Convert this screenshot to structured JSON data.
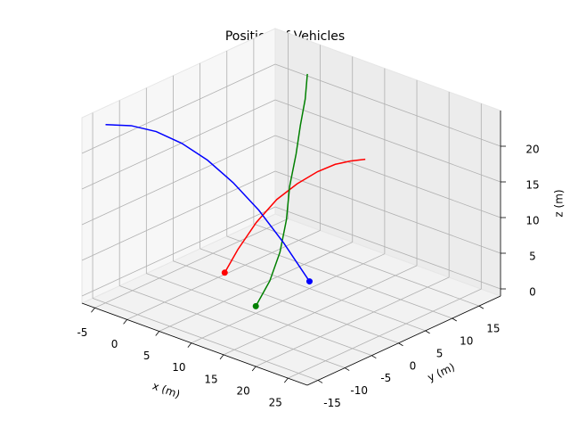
{
  "chart_data": {
    "type": "line3d",
    "title": "Position of Vehicles",
    "xlabel": "x (m)",
    "ylabel": "y (m)",
    "zlabel": "z (m)",
    "xlim": [
      -7,
      28
    ],
    "xticks": [
      -5,
      0,
      5,
      10,
      15,
      20,
      25
    ],
    "ylim": [
      -17,
      19
    ],
    "yticks": [
      -15,
      -10,
      -5,
      0,
      5,
      10,
      15
    ],
    "zlim": [
      -1,
      25
    ],
    "zticks": [
      0,
      5,
      10,
      15,
      20
    ],
    "grid": true,
    "series": [
      {
        "color": "#ff0000",
        "marker": "start",
        "x": [
          1,
          1.8,
          3,
          4.5,
          6,
          7.5,
          9,
          10.5,
          12
        ],
        "y": [
          0,
          1.5,
          3.5,
          5.5,
          7.5,
          9.5,
          11,
          12,
          13
        ],
        "z": [
          0,
          3,
          6.5,
          9.5,
          11.5,
          13,
          14,
          14.6,
          15
        ]
      },
      {
        "color": "#008000",
        "marker": "start",
        "x": [
          10,
          10.5,
          10,
          8.5,
          6.5,
          5,
          4,
          3.5,
          3
        ],
        "y": [
          -5,
          -3,
          -0.5,
          2.5,
          5.5,
          8.5,
          10.5,
          12,
          13
        ],
        "z": [
          0,
          3,
          6,
          9,
          12,
          15,
          18,
          21,
          24
        ]
      },
      {
        "color": "#0000ff",
        "marker": "end",
        "x": [
          -5,
          -3.1,
          -1.3,
          0.6,
          2.5,
          4.4,
          6.3,
          8.1,
          10
        ],
        "y": [
          -15,
          -12.5,
          -10,
          -7.5,
          -5,
          -2.5,
          0,
          2.5,
          5
        ],
        "z": [
          24,
          23.6,
          22.5,
          20.6,
          18,
          14.6,
          10.5,
          5.6,
          0
        ]
      }
    ]
  }
}
